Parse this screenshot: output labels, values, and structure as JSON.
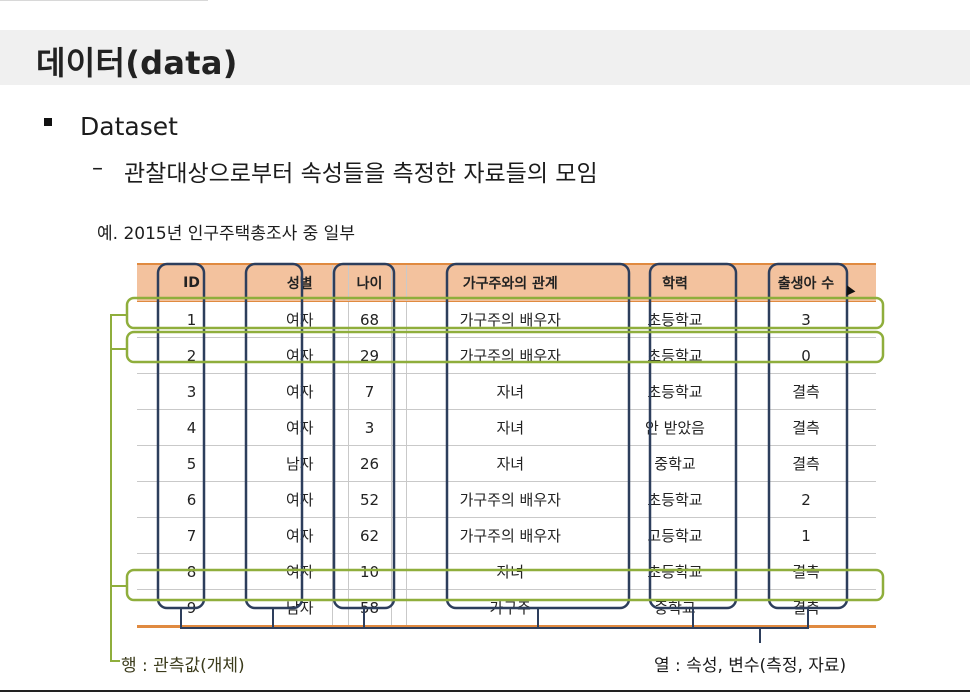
{
  "slide": {
    "title": "데이터(data)",
    "bullet": "Dataset",
    "sub_dash": "–",
    "sub_bullet": "관찰대상으로부터 속성들을 측정한 자료들의 모임",
    "example": "예.  2015년 인구주택총조사 중 일부"
  },
  "table": {
    "headers": [
      "ID",
      "성별",
      "나이",
      "가구주와의 관계",
      "학력",
      "출생아 수"
    ],
    "rows": [
      [
        "1",
        "여자",
        "68",
        "가구주의 배우자",
        "초등학교",
        "3"
      ],
      [
        "2",
        "여자",
        "29",
        "가구주의 배우자",
        "초등학교",
        "0"
      ],
      [
        "3",
        "여자",
        "7",
        "자녀",
        "초등학교",
        "결측"
      ],
      [
        "4",
        "여자",
        "3",
        "자녀",
        "안 받았음",
        "결측"
      ],
      [
        "5",
        "남자",
        "26",
        "자녀",
        "중학교",
        "결측"
      ],
      [
        "6",
        "여자",
        "52",
        "가구주의 배우자",
        "초등학교",
        "2"
      ],
      [
        "7",
        "여자",
        "62",
        "가구주의 배우자",
        "고등학교",
        "1"
      ],
      [
        "8",
        "여자",
        "10",
        "자녀",
        "초등학교",
        "결측"
      ],
      [
        "9",
        "남자",
        "58",
        "가구주",
        "중학교",
        "결측"
      ]
    ],
    "highlighted_rows": [
      1,
      2,
      9
    ]
  },
  "annotations": {
    "row_label": "행 : 관측값(개체)",
    "column_label": "열 : 속성, 변수(측정, 자료)"
  },
  "colors": {
    "header_fill": "#f3c29e",
    "header_rule": "#e08a40",
    "column_outline": "#2d3e5c",
    "row_outline": "#8fae3c",
    "title_band": "#f0f0f0"
  }
}
